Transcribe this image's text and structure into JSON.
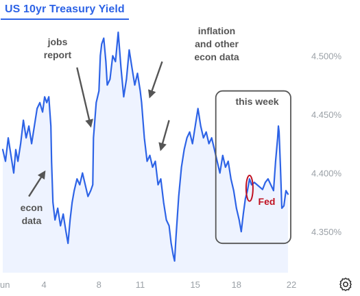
{
  "chart_data": {
    "type": "line",
    "title": "US 10yr Treasury Yield",
    "x_tick_labels": [
      "Jun",
      "4",
      "8",
      "11",
      "15",
      "18",
      "22"
    ],
    "x_tick_days": [
      1,
      4,
      8,
      11,
      15,
      18,
      22
    ],
    "y_tick_labels": [
      "4.500%",
      "4.450%",
      "4.400%",
      "4.350%"
    ],
    "y_tick_values": [
      4.5,
      4.45,
      4.4,
      4.35
    ],
    "ylim": [
      4.315,
      4.53
    ],
    "xlim": [
      1,
      22.1
    ],
    "grid": false,
    "series": [
      {
        "color": "#2d63e6",
        "points": [
          [
            1.0,
            4.42
          ],
          [
            1.2,
            4.41
          ],
          [
            1.4,
            4.43
          ],
          [
            1.6,
            4.415
          ],
          [
            1.8,
            4.4
          ],
          [
            1.95,
            4.42
          ],
          [
            2.1,
            4.41
          ],
          [
            2.3,
            4.425
          ],
          [
            2.5,
            4.445
          ],
          [
            2.7,
            4.43
          ],
          [
            2.9,
            4.44
          ],
          [
            3.1,
            4.425
          ],
          [
            3.3,
            4.44
          ],
          [
            3.5,
            4.455
          ],
          [
            3.7,
            4.46
          ],
          [
            3.9,
            4.452
          ],
          [
            4.05,
            4.465
          ],
          [
            4.2,
            4.46
          ],
          [
            4.35,
            4.465
          ],
          [
            4.5,
            4.44
          ],
          [
            4.55,
            4.41
          ],
          [
            4.65,
            4.375
          ],
          [
            4.8,
            4.36
          ],
          [
            5.0,
            4.37
          ],
          [
            5.2,
            4.355
          ],
          [
            5.4,
            4.365
          ],
          [
            5.6,
            4.35
          ],
          [
            5.75,
            4.34
          ],
          [
            5.9,
            4.36
          ],
          [
            6.05,
            4.375
          ],
          [
            6.2,
            4.385
          ],
          [
            6.4,
            4.395
          ],
          [
            6.6,
            4.39
          ],
          [
            6.8,
            4.4
          ],
          [
            7.0,
            4.39
          ],
          [
            7.2,
            4.38
          ],
          [
            7.4,
            4.385
          ],
          [
            7.55,
            4.39
          ],
          [
            7.6,
            4.43
          ],
          [
            7.8,
            4.46
          ],
          [
            8.0,
            4.47
          ],
          [
            8.1,
            4.5
          ],
          [
            8.2,
            4.51
          ],
          [
            8.35,
            4.515
          ],
          [
            8.5,
            4.495
          ],
          [
            8.6,
            4.475
          ],
          [
            8.8,
            4.48
          ],
          [
            9.0,
            4.5
          ],
          [
            9.2,
            4.495
          ],
          [
            9.4,
            4.52
          ],
          [
            9.6,
            4.49
          ],
          [
            9.8,
            4.465
          ],
          [
            10.0,
            4.48
          ],
          [
            10.2,
            4.505
          ],
          [
            10.4,
            4.49
          ],
          [
            10.6,
            4.475
          ],
          [
            10.8,
            4.485
          ],
          [
            11.0,
            4.47
          ],
          [
            11.1,
            4.46
          ],
          [
            11.3,
            4.43
          ],
          [
            11.5,
            4.41
          ],
          [
            11.7,
            4.415
          ],
          [
            11.9,
            4.405
          ],
          [
            12.1,
            4.41
          ],
          [
            12.3,
            4.39
          ],
          [
            12.5,
            4.395
          ],
          [
            12.7,
            4.375
          ],
          [
            12.9,
            4.36
          ],
          [
            13.1,
            4.355
          ],
          [
            13.25,
            4.34
          ],
          [
            13.4,
            4.33
          ],
          [
            13.5,
            4.325
          ],
          [
            13.6,
            4.345
          ],
          [
            13.8,
            4.38
          ],
          [
            14.0,
            4.405
          ],
          [
            14.2,
            4.42
          ],
          [
            14.4,
            4.43
          ],
          [
            14.6,
            4.435
          ],
          [
            14.8,
            4.425
          ],
          [
            15.0,
            4.44
          ],
          [
            15.2,
            4.455
          ],
          [
            15.4,
            4.44
          ],
          [
            15.6,
            4.43
          ],
          [
            15.8,
            4.435
          ],
          [
            16.0,
            4.425
          ],
          [
            16.2,
            4.43
          ],
          [
            16.4,
            4.42
          ],
          [
            16.6,
            4.41
          ],
          [
            16.8,
            4.4
          ],
          [
            17.0,
            4.415
          ],
          [
            17.2,
            4.405
          ],
          [
            17.4,
            4.41
          ],
          [
            17.6,
            4.395
          ],
          [
            17.8,
            4.385
          ],
          [
            18.0,
            4.37
          ],
          [
            18.2,
            4.36
          ],
          [
            18.35,
            4.35
          ],
          [
            18.5,
            4.365
          ],
          [
            18.65,
            4.378
          ],
          [
            18.8,
            4.385
          ],
          [
            18.95,
            4.395
          ],
          [
            19.1,
            4.39
          ],
          [
            19.3,
            4.392
          ],
          [
            19.5,
            4.39
          ],
          [
            19.7,
            4.388
          ],
          [
            19.9,
            4.386
          ],
          [
            20.1,
            4.392
          ],
          [
            20.3,
            4.395
          ],
          [
            20.5,
            4.39
          ],
          [
            20.7,
            4.385
          ],
          [
            20.85,
            4.41
          ],
          [
            21.0,
            4.43
          ],
          [
            21.05,
            4.44
          ],
          [
            21.1,
            4.435
          ],
          [
            21.2,
            4.405
          ],
          [
            21.3,
            4.37
          ],
          [
            21.45,
            4.372
          ],
          [
            21.6,
            4.385
          ],
          [
            21.75,
            4.382
          ]
        ]
      }
    ],
    "annotations": [
      {
        "lines": [
          "jobs",
          "report"
        ],
        "arrow_from": [
          6.4,
          4.49
        ],
        "arrow_to": [
          7.4,
          4.44
        ]
      },
      {
        "lines": [
          "inflation",
          "and other",
          "econ data"
        ],
        "arrow_from": [
          12.6,
          4.495
        ],
        "arrow_to": [
          11.7,
          4.465
        ]
      },
      {
        "lines": [],
        "arrow_from": [
          13.1,
          4.445
        ],
        "arrow_to": [
          12.5,
          4.42
        ]
      },
      {
        "lines": [
          "econ",
          "data"
        ],
        "arrow_from": [
          2.9,
          4.38
        ],
        "arrow_to": [
          4.05,
          4.401
        ]
      },
      {
        "lines": [
          "this week"
        ],
        "box": [
          16.5,
          21.95,
          4.47,
          4.34
        ]
      },
      {
        "lines": [
          "Fed"
        ],
        "color": "#c01020",
        "ellipse": [
          18.95,
          4.387,
          0.25,
          0.011
        ]
      }
    ]
  }
}
